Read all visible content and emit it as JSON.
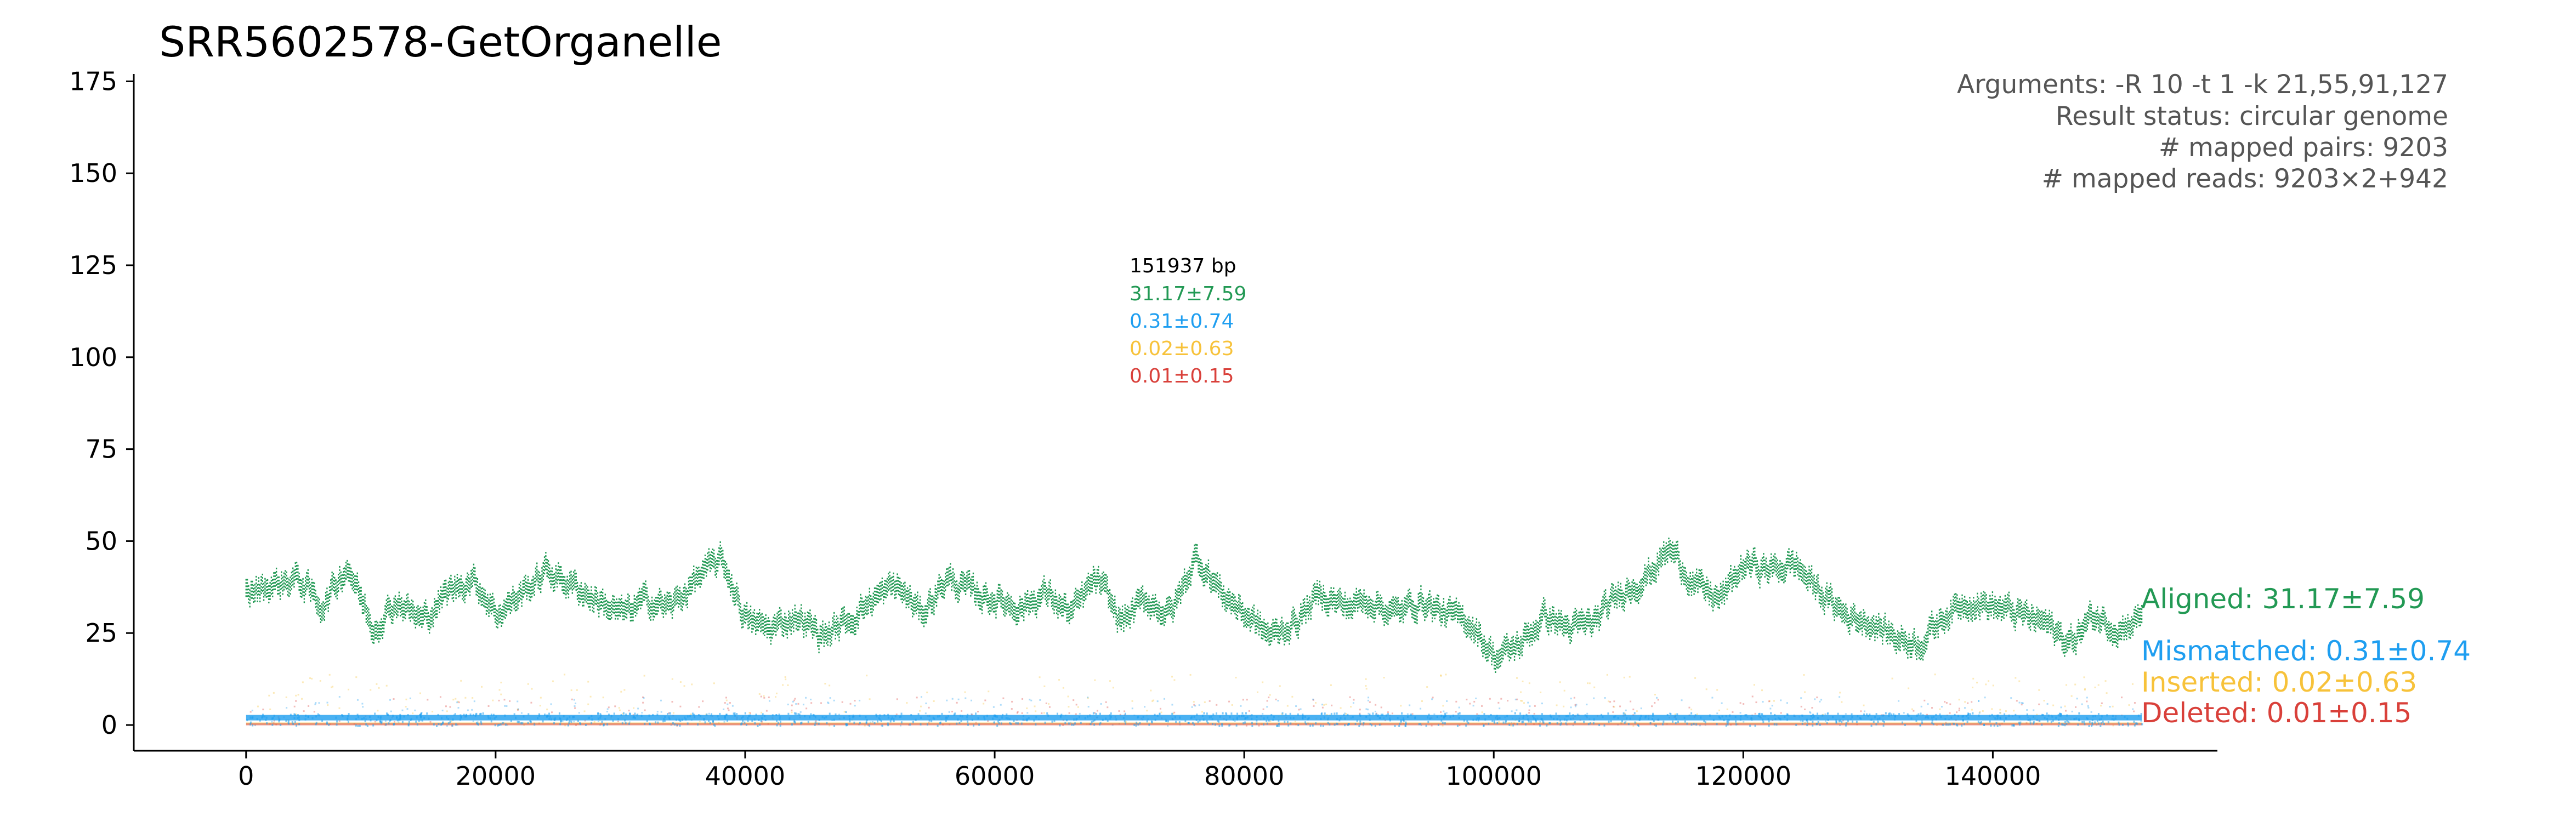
{
  "chart_data": {
    "type": "scatter",
    "title": "SRR5602578-GetOrganelle",
    "xlabel": "",
    "ylabel": "",
    "xlim": [
      -9000,
      158000
    ],
    "ylim": [
      -7,
      177
    ],
    "xticks": [
      0,
      20000,
      40000,
      60000,
      80000,
      100000,
      120000,
      140000
    ],
    "xtick_labels": [
      "0",
      "20000",
      "40000",
      "60000",
      "80000",
      "100000",
      "120000",
      "140000"
    ],
    "yticks": [
      0,
      25,
      50,
      75,
      100,
      125,
      150,
      175
    ],
    "ytick_labels": [
      "0",
      "25",
      "50",
      "75",
      "100",
      "125",
      "150",
      "175"
    ],
    "genome_length": 151937,
    "info_lines": [
      "Arguments: -R 10 -t 1 -k 21,55,91,127",
      "Result status: circular genome",
      "# mapped pairs: 9203",
      "# mapped reads: 9203×2+942"
    ],
    "center_annotation": {
      "length_label": "151937 bp",
      "lines": [
        {
          "text": "31.17±7.59",
          "color": "#229954"
        },
        {
          "text": "0.31±0.74",
          "color": "#1e9ef0"
        },
        {
          "text": "0.02±0.63",
          "color": "#f7c23a"
        },
        {
          "text": "0.01±0.15",
          "color": "#d9403a"
        }
      ]
    },
    "series": [
      {
        "name": "Aligned: 31.17±7.59",
        "color": "#229954",
        "mean": 31.17,
        "sd": 7.59,
        "x": [
          0,
          2000,
          4000,
          6000,
          8000,
          10000,
          12000,
          14000,
          16000,
          18000,
          20000,
          22000,
          24000,
          26000,
          28000,
          30000,
          32000,
          34000,
          36000,
          38000,
          40000,
          42000,
          44000,
          46000,
          48000,
          50000,
          52000,
          54000,
          56000,
          58000,
          60000,
          62000,
          64000,
          66000,
          68000,
          70000,
          72000,
          74000,
          76000,
          78000,
          80000,
          82000,
          84000,
          86000,
          88000,
          90000,
          92000,
          94000,
          96000,
          98000,
          100000,
          102000,
          104000,
          106000,
          108000,
          110000,
          112000,
          114000,
          116000,
          118000,
          120000,
          122000,
          124000,
          126000,
          128000,
          130000,
          132000,
          134000,
          136000,
          138000,
          140000,
          142000,
          144000,
          146000,
          148000,
          150000,
          151937
        ],
        "y": [
          36,
          38,
          40,
          32,
          44,
          26,
          34,
          28,
          36,
          40,
          30,
          36,
          42,
          38,
          34,
          30,
          34,
          32,
          40,
          45,
          28,
          26,
          30,
          24,
          28,
          34,
          38,
          30,
          40,
          36,
          34,
          32,
          36,
          30,
          40,
          28,
          34,
          30,
          46,
          36,
          30,
          24,
          28,
          36,
          32,
          34,
          30,
          34,
          30,
          28,
          18,
          22,
          30,
          26,
          28,
          36,
          40,
          48,
          38,
          34,
          44,
          42,
          44,
          36,
          30,
          28,
          24,
          22,
          30,
          34,
          32,
          30,
          28,
          22,
          30,
          26,
          30
        ]
      },
      {
        "name": "Mismatched: 0.31±0.74",
        "color": "#1e9ef0",
        "mean": 0.31,
        "sd": 0.74,
        "x": [
          0,
          151937
        ],
        "y": [
          0.3,
          0.3
        ]
      },
      {
        "name": "Inserted: 0.02±0.63",
        "color": "#f7c23a",
        "mean": 0.02,
        "sd": 0.63,
        "x": [
          0,
          151937
        ],
        "y": [
          0.02,
          0.02
        ]
      },
      {
        "name": "Deleted: 0.01±0.15",
        "color": "#d9403a",
        "mean": 0.01,
        "sd": 0.15,
        "x": [
          0,
          151937
        ],
        "y": [
          0.01,
          0.01
        ]
      }
    ],
    "grid": false,
    "legend_placement": "right"
  }
}
